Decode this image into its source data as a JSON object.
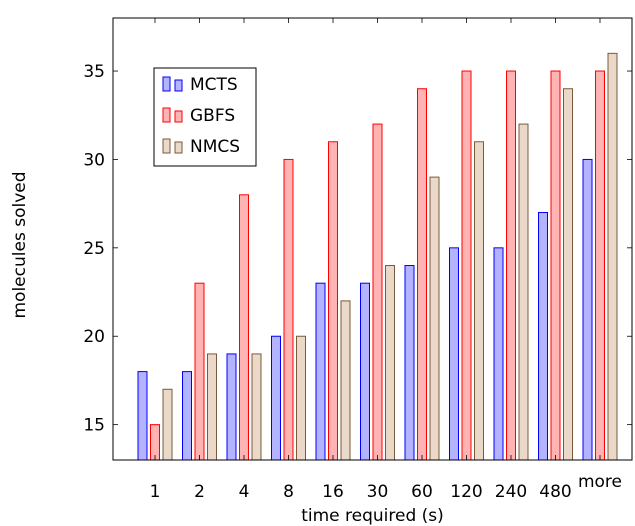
{
  "chart_data": {
    "type": "bar",
    "xlabel": "time required (s)",
    "ylabel": "molecules solved",
    "categories": [
      "1",
      "2",
      "4",
      "8",
      "16",
      "30",
      "60",
      "120",
      "240",
      "480",
      "more"
    ],
    "ylim": [
      13,
      38
    ],
    "yticks": [
      15,
      20,
      25,
      30,
      35
    ],
    "grid": false,
    "legend_position": "top-left",
    "series": [
      {
        "name": "MCTS",
        "values": [
          18,
          18,
          19,
          20,
          23,
          23,
          24,
          25,
          25,
          27,
          30
        ],
        "fill": "#b3b3ff",
        "stroke": "#0000ff"
      },
      {
        "name": "GBFS",
        "values": [
          15,
          23,
          28,
          30,
          31,
          32,
          34,
          35,
          35,
          35,
          35
        ],
        "fill": "#ffb3b3",
        "stroke": "#ff0000"
      },
      {
        "name": "NMCS",
        "values": [
          17,
          19,
          19,
          20,
          22,
          24,
          29,
          31,
          32,
          34,
          36
        ],
        "fill": "#ead9c8",
        "stroke": "#7a5a3a"
      }
    ]
  }
}
